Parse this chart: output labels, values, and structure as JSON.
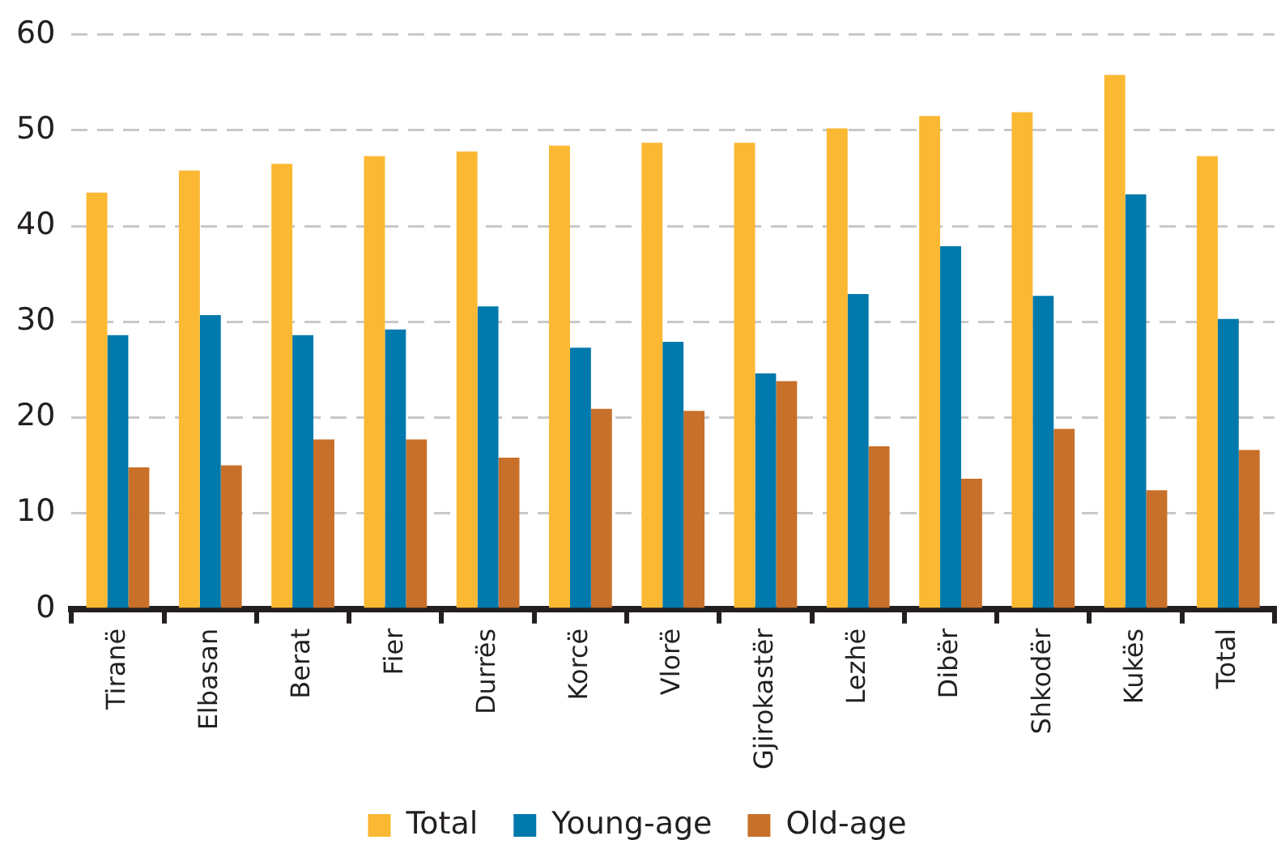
{
  "chart_data": {
    "type": "bar",
    "categories": [
      "Tiranë",
      "Elbasan",
      "Berat",
      "Fier",
      "Durrës",
      "Korcë",
      "Vlorë",
      "Gjirokastër",
      "Lezhë",
      "Dibër",
      "Shkodër",
      "Kukës",
      "Total"
    ],
    "series": [
      {
        "name": "Total",
        "color": "#fbb832",
        "values": [
          43.5,
          45.8,
          46.5,
          47.3,
          47.8,
          48.4,
          48.7,
          48.7,
          50.2,
          51.5,
          51.9,
          55.8,
          47.3
        ]
      },
      {
        "name": "Young-age",
        "color": "#0079ac",
        "values": [
          28.6,
          30.7,
          28.6,
          29.2,
          31.6,
          27.3,
          27.9,
          24.6,
          32.9,
          37.9,
          32.7,
          43.3,
          30.3
        ]
      },
      {
        "name": "Old-age",
        "color": "#c8702a",
        "values": [
          14.8,
          15.0,
          17.7,
          17.7,
          15.8,
          20.9,
          20.7,
          23.8,
          17.0,
          13.6,
          18.8,
          12.4,
          16.6
        ]
      }
    ],
    "ylim": [
      0,
      60
    ],
    "yticks": [
      0,
      10,
      20,
      30,
      40,
      50,
      60
    ],
    "grid": "y",
    "legend": "bottom"
  }
}
